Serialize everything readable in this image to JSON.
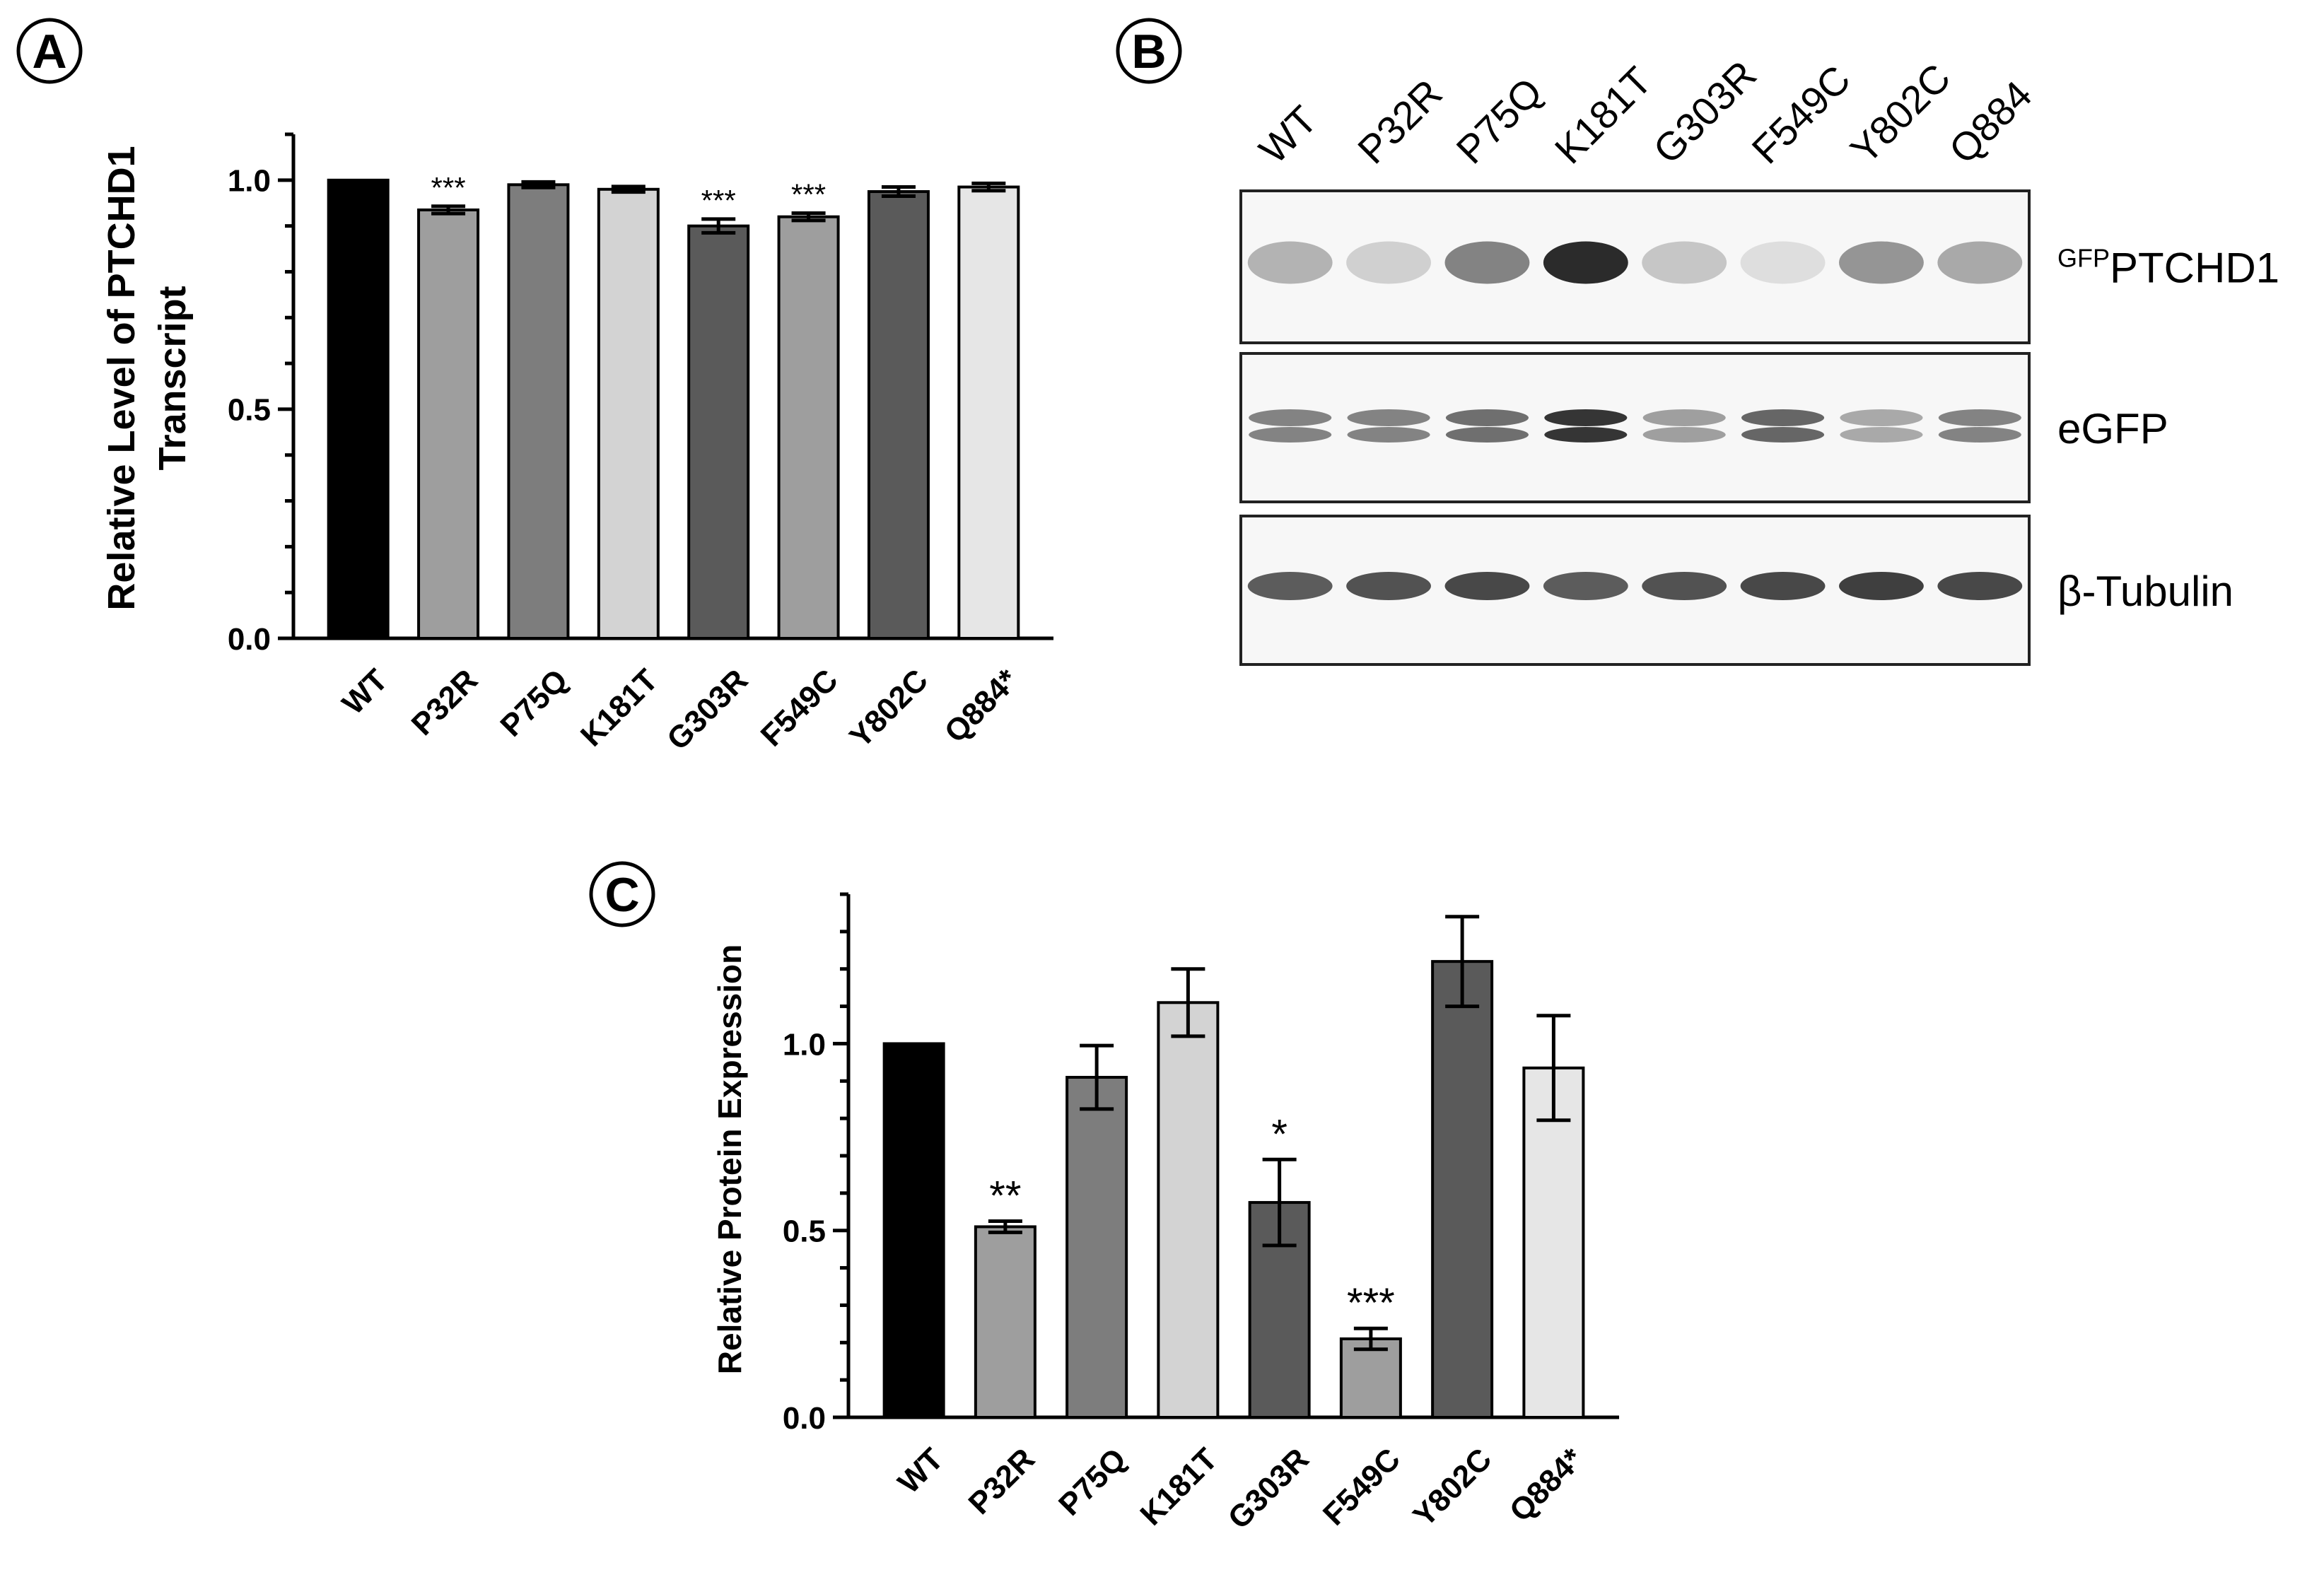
{
  "panels": {
    "A": {
      "label": "A"
    },
    "B": {
      "label": "B"
    },
    "C": {
      "label": "C"
    }
  },
  "colors": {
    "WT": "#000000",
    "P32R": "#9e9e9e",
    "P75Q": "#7d7d7d",
    "K181T": "#d3d3d3",
    "G303R": "#5a5a5a",
    "F549C": "#9e9e9e",
    "Y802C": "#5a5a5a",
    "Q884*": "#e6e6e6"
  },
  "chart_data": [
    {
      "panel": "A",
      "type": "bar",
      "categories": [
        "WT",
        "P32R",
        "P75Q",
        "K181T",
        "G303R",
        "F549C",
        "Y802C",
        "Q884*"
      ],
      "values": [
        1.0,
        0.935,
        0.99,
        0.98,
        0.9,
        0.92,
        0.975,
        0.985
      ],
      "errors": [
        0.0,
        0.008,
        0.006,
        0.006,
        0.015,
        0.008,
        0.01,
        0.008
      ],
      "significance": [
        "",
        "***",
        "",
        "",
        "***",
        "***",
        "",
        ""
      ],
      "ylabel_line1": "Relative Level of PTCHD1",
      "ylabel_line2": "Transcript",
      "ylim": [
        0,
        1.1
      ],
      "yticks": [
        0.0,
        0.5,
        1.0
      ],
      "ytick_labels": [
        "0.0",
        "0.5",
        "1.0"
      ]
    },
    {
      "panel": "C",
      "type": "bar",
      "categories": [
        "WT",
        "P32R",
        "P75Q",
        "K181T",
        "G303R",
        "F549C",
        "Y802C",
        "Q884*"
      ],
      "values": [
        1.0,
        0.51,
        0.91,
        1.11,
        0.575,
        0.21,
        1.22,
        0.935
      ],
      "errors": [
        0.0,
        0.015,
        0.085,
        0.09,
        0.115,
        0.028,
        0.12,
        0.14
      ],
      "significance": [
        "",
        "**",
        "",
        "",
        "*",
        "***",
        "",
        ""
      ],
      "ylabel": "Relative Protein Expression",
      "ylim": [
        0,
        1.4
      ],
      "yticks": [
        0.0,
        0.5,
        1.0
      ],
      "ytick_labels": [
        "0.0",
        "0.5",
        "1.0"
      ]
    }
  ],
  "blot": {
    "lanes": [
      "WT",
      "P32R",
      "P75Q",
      "K181T",
      "G303R",
      "F549C",
      "Y802C",
      "Q884"
    ],
    "rows": [
      {
        "label_sup": "GFP",
        "label_main": "PTCHD1",
        "intensity": [
          0.3,
          0.15,
          0.55,
          1.0,
          0.2,
          0.08,
          0.45,
          0.35
        ]
      },
      {
        "label_sup": "",
        "label_main": "eGFP",
        "intensity": [
          0.55,
          0.55,
          0.65,
          0.95,
          0.4,
          0.7,
          0.35,
          0.55
        ]
      },
      {
        "label_sup": "",
        "label_main": "β-Tubulin",
        "intensity": [
          0.75,
          0.8,
          0.85,
          0.75,
          0.8,
          0.85,
          0.9,
          0.85
        ]
      }
    ]
  }
}
